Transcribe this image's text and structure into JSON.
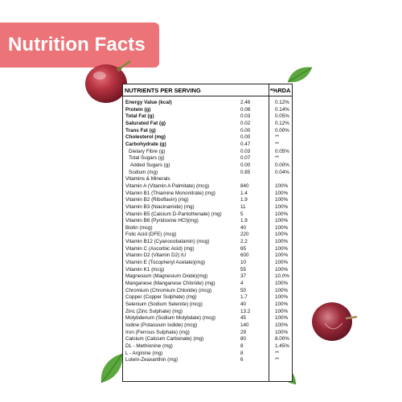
{
  "banner": {
    "title": "Nutrition Facts"
  },
  "table": {
    "header": {
      "nutrients": "NUTRIENTS PER SERVING",
      "rda": "*%RDA"
    },
    "rows": [
      {
        "name": "Energy Value (kcal)",
        "value": "2.46",
        "rda": "0.12%",
        "style": "b"
      },
      {
        "name": "Protein (g)",
        "value": "0.08",
        "rda": "0.14%",
        "style": "b"
      },
      {
        "name": "Total Fat (g)",
        "value": "0.03",
        "rda": "0.05%",
        "style": "b"
      },
      {
        "name": "Saturated Fat (g)",
        "value": "0.02",
        "rda": "0.12%",
        "style": "b"
      },
      {
        "name": "Trans Fat (g)",
        "value": "0.00",
        "rda": "0.00%",
        "style": "b"
      },
      {
        "name": "Cholesterol (mg)",
        "value": "0.00",
        "rda": "**",
        "style": "b"
      },
      {
        "name": "Carbohydrate (g)",
        "value": "0.47",
        "rda": "**",
        "style": "b"
      },
      {
        "name": "Dietary Fibre (g)",
        "value": "0.03",
        "rda": "0.05%",
        "style": "i1"
      },
      {
        "name": "Total Sugars (g)",
        "value": "0.07",
        "rda": "**",
        "style": "i1"
      },
      {
        "name": "Added Sugars (g)",
        "value": "0.00",
        "rda": "0.00%",
        "style": "i2"
      },
      {
        "name": "Sodium (mg)",
        "value": "0.85",
        "rda": "0.04%",
        "style": "i1"
      },
      {
        "name": "Vitamins & Minerals",
        "value": "",
        "rda": "",
        "style": ""
      },
      {
        "name": "Vitamin A (Vitamin A Palmitate) (mcg)",
        "value": "840",
        "rda": "100%",
        "style": ""
      },
      {
        "name": "Vitamin B1 (Thiamine Mononitrate) (mg)",
        "value": "1.4",
        "rda": "100%",
        "style": ""
      },
      {
        "name": "Vitamin B2 (Riboflavin) (mg)",
        "value": "1.9",
        "rda": "100%",
        "style": ""
      },
      {
        "name": "Vitamin B3 (Niacinamide) (mg)",
        "value": "11",
        "rda": "100%",
        "style": ""
      },
      {
        "name": "Vitamin B5 (Calcium D-Pantothenate) (mg)",
        "value": "5",
        "rda": "100%",
        "style": ""
      },
      {
        "name": "Vitamin B6 (Pyridoxine HCl)(mg)",
        "value": "1.9",
        "rda": "100%",
        "style": ""
      },
      {
        "name": "Biotin (mcg)",
        "value": "40",
        "rda": "100%",
        "style": ""
      },
      {
        "name": "Folic Acid (DFE) (mcg)",
        "value": "220",
        "rda": "100%",
        "style": ""
      },
      {
        "name": "Vitamin B12 (Cyanocobalamin) (mcg)",
        "value": "2.2",
        "rda": "100%",
        "style": ""
      },
      {
        "name": "Vitamin C (Ascorbic Acid) (mg)",
        "value": "65",
        "rda": "100%",
        "style": ""
      },
      {
        "name": "Vitamin D2 (Vitamin D2) IU",
        "value": "600",
        "rda": "100%",
        "style": ""
      },
      {
        "name": "Vitamin E (Tocopheryl Acetate)(mg)",
        "value": "10",
        "rda": "100%",
        "style": ""
      },
      {
        "name": "Vitamin K1 (mcg)",
        "value": "55",
        "rda": "100%",
        "style": ""
      },
      {
        "name": "Magnesium (Magnesium Oxide)(mg)",
        "value": "37",
        "rda": "10.0%",
        "style": ""
      },
      {
        "name": "Manganese (Manganese Chloride) (mg)",
        "value": "4",
        "rda": "100%",
        "style": ""
      },
      {
        "name": "Chromium (Chromium Chloride) (mcg)",
        "value": "50",
        "rda": "100%",
        "style": ""
      },
      {
        "name": "Copper (Copper Sulphate) (mg)",
        "value": "1.7",
        "rda": "100%",
        "style": ""
      },
      {
        "name": "Selenium (Sodium Selenite) (mcg)",
        "value": "40",
        "rda": "100%",
        "style": ""
      },
      {
        "name": "Zinc (Zinc Sulphate) (mg)",
        "value": "13.2",
        "rda": "100%",
        "style": ""
      },
      {
        "name": "Molybdenum (Sodium Molybdate) (mcg)",
        "value": "45",
        "rda": "100%",
        "style": ""
      },
      {
        "name": "Iodine (Potassium Iodide) (mcg)",
        "value": "140",
        "rda": "100%",
        "style": ""
      },
      {
        "name": "Iron (Ferrous Sulphate) (mg)",
        "value": "29",
        "rda": "100%",
        "style": ""
      },
      {
        "name": "Calcium (Calcium Carbonate) (mg)",
        "value": "80",
        "rda": "8.00%",
        "style": ""
      },
      {
        "name": "DL - Methionine (mg)",
        "value": "8",
        "rda": "1.45%",
        "style": ""
      },
      {
        "name": "L - Arginine (mg)",
        "value": "8",
        "rda": "**",
        "style": ""
      },
      {
        "name": "Lutein-Zeaxanthin (mg)",
        "value": "6",
        "rda": "**",
        "style": ""
      }
    ]
  },
  "colors": {
    "banner": "#ec7479",
    "grape": "#9a2a35",
    "leaf": "#58a33d"
  },
  "decorations": [
    "grape-icon",
    "grape-icon",
    "leaf-icon",
    "leaf-icon",
    "leaf-icon"
  ]
}
